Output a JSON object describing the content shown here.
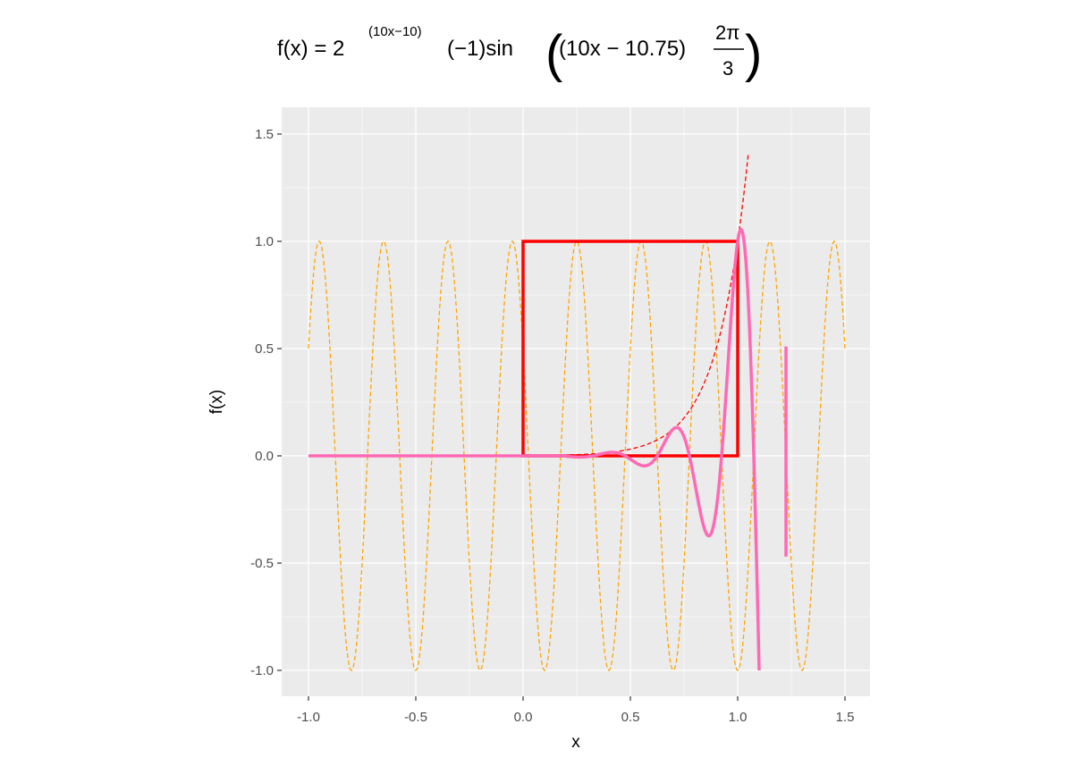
{
  "chart_data": {
    "type": "line",
    "title": "f(x) = 2^((10x-10))(-1)sin(((10x-10.75)2π/3))",
    "title_parts": {
      "lhs": "f(x) = 2",
      "exponent": "(10x−10)",
      "rest": "(−1)sin",
      "arg": "(10x − 10.75)",
      "numerator": "2π",
      "denominator": "3"
    },
    "xlabel": "x",
    "ylabel": "f(x)",
    "xlim": [
      -1.0,
      1.5
    ],
    "ylim": [
      -1.0,
      1.5
    ],
    "x_ticks": [
      -1.0,
      -0.5,
      0.0,
      0.5,
      1.0,
      1.5
    ],
    "x_tick_labels": [
      "-1.0",
      "-0.5",
      "0.0",
      "0.5",
      "1.0",
      "1.5"
    ],
    "y_ticks": [
      -1.0,
      -0.5,
      0.0,
      0.5,
      1.0,
      1.5
    ],
    "y_tick_labels": [
      "-1.0",
      "-0.5",
      "0.0",
      "0.5",
      "1.0",
      "1.5"
    ],
    "grid": true,
    "background": "#ebebeb",
    "colors": {
      "panel": "#ebebeb",
      "grid": "#ffffff",
      "sine": "#ffa500",
      "envelope": "#ff0000",
      "curve": "#ff69b4",
      "box": "#ff0000"
    },
    "series": [
      {
        "style": "dashed-orange",
        "x_range": [
          -1.0,
          1.5
        ],
        "description_values": "sin((10x-10.75)*2π/3)",
        "period": 0.3,
        "phase_x_at_zero": 1.075
      },
      {
        "style": "dashed-red",
        "x_range": [
          0.15,
          1.05
        ],
        "description_values": "2^(10x-10)"
      },
      {
        "style": "solid-pink",
        "x": [
          -1.0,
          0.0,
          0.2,
          0.3,
          0.45,
          0.56,
          0.72,
          0.86,
          0.95,
          1.02,
          1.06,
          1.1
        ],
        "y": [
          0.0,
          0.0,
          0.0,
          0.005,
          0.02,
          -0.05,
          0.13,
          -0.37,
          0.3,
          1.05,
          0.5,
          -1.0
        ]
      },
      {
        "style": "solid-pink-segment",
        "x": [
          1.225,
          1.225
        ],
        "y": [
          -0.47,
          0.51
        ]
      }
    ],
    "box": {
      "x": [
        0.0,
        1.0
      ],
      "y": [
        0.0,
        1.0
      ]
    }
  }
}
